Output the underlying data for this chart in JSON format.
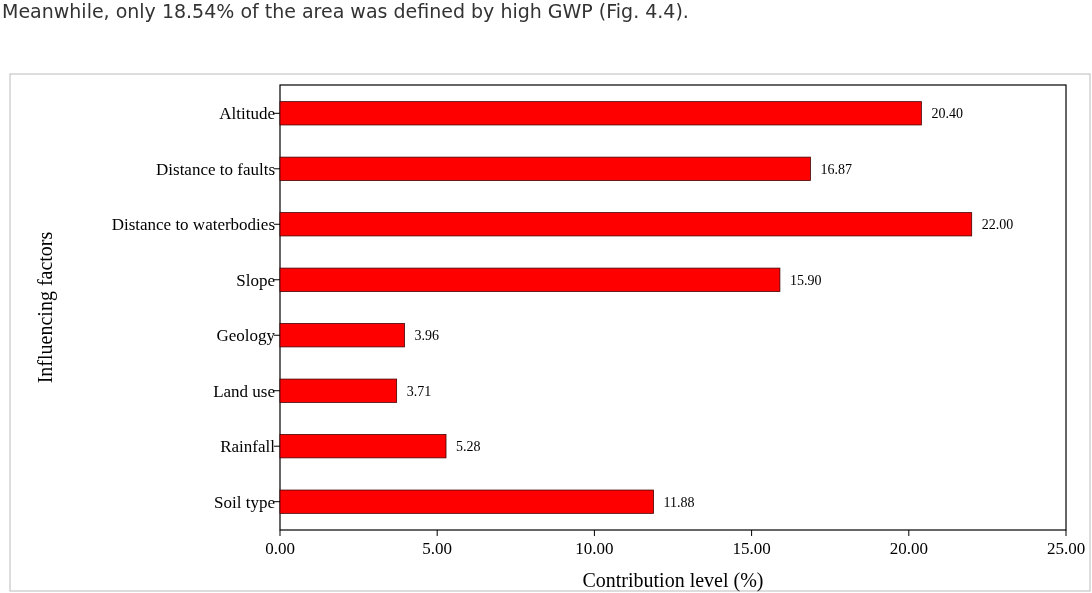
{
  "chart_data": {
    "type": "bar",
    "orientation": "horizontal",
    "xlabel": "Contribution level (%)",
    "ylabel": "Influencing factors",
    "annotations": [
      "Meanwhile, only 18.54% of the area was defined by high GWP (Fig. 4.4)."
    ],
    "categories": [
      "Altitude",
      "Distance to faults",
      "Distance to waterbodies",
      "Slope",
      "Geology",
      "Land use",
      "Rainfall",
      "Soil type"
    ],
    "values": [
      20.4,
      16.87,
      22.0,
      15.9,
      3.96,
      3.71,
      5.28,
      11.88
    ],
    "value_labels": [
      "20.40",
      "16.87",
      "22.00",
      "15.90",
      "3.96",
      "3.71",
      "5.28",
      "11.88"
    ],
    "color": "#ff0000",
    "xlim": [
      0,
      25
    ],
    "xticks": [
      {
        "value": 0,
        "label": "0.00"
      },
      {
        "value": 5,
        "label": "5.00"
      },
      {
        "value": 10,
        "label": "10.00"
      },
      {
        "value": 15,
        "label": "15.00"
      },
      {
        "value": 20,
        "label": "20.00"
      },
      {
        "value": 25,
        "label": "25.00"
      }
    ],
    "grid": false
  }
}
